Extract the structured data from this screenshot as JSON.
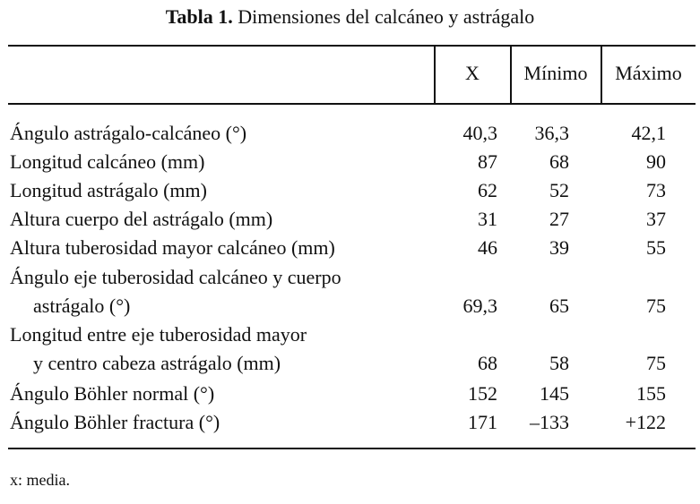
{
  "table": {
    "caption_number": "Tabla 1.",
    "caption_text": " Dimensiones del calcáneo y astrágalo",
    "headers": [
      "X",
      "Mínimo",
      "Máximo"
    ],
    "rows": [
      {
        "label": "Ángulo astrágalo-calcáneo (°)",
        "label2": "",
        "x": "40,3",
        "min": "36,3",
        "max": "42,1"
      },
      {
        "label": "Longitud calcáneo (mm)",
        "label2": "",
        "x": "87",
        "min": "68",
        "max": "90"
      },
      {
        "label": "Longitud astrágalo (mm)",
        "label2": "",
        "x": "62",
        "min": "52",
        "max": "73"
      },
      {
        "label": "Altura cuerpo del astrágalo (mm)",
        "label2": "",
        "x": "31",
        "min": "27",
        "max": "37"
      },
      {
        "label": "Altura tuberosidad mayor calcáneo (mm)",
        "label2": "",
        "x": "46",
        "min": "39",
        "max": "55"
      },
      {
        "label": "Ángulo eje tuberosidad calcáneo y cuerpo",
        "label2": "astrágalo (°)",
        "x": "69,3",
        "min": "65",
        "max": "75"
      },
      {
        "label": "Longitud entre eje tuberosidad mayor",
        "label2": "y centro cabeza astrágalo (mm)",
        "x": "68",
        "min": "58",
        "max": "75"
      },
      {
        "label": "Ángulo Böhler normal (°)",
        "label2": "",
        "x": "152",
        "min": "145",
        "max": "155"
      },
      {
        "label": "Ángulo Böhler fractura (°)",
        "label2": "",
        "x": "171",
        "min": "–133",
        "max": "+122"
      }
    ],
    "footnote": "x: media."
  }
}
